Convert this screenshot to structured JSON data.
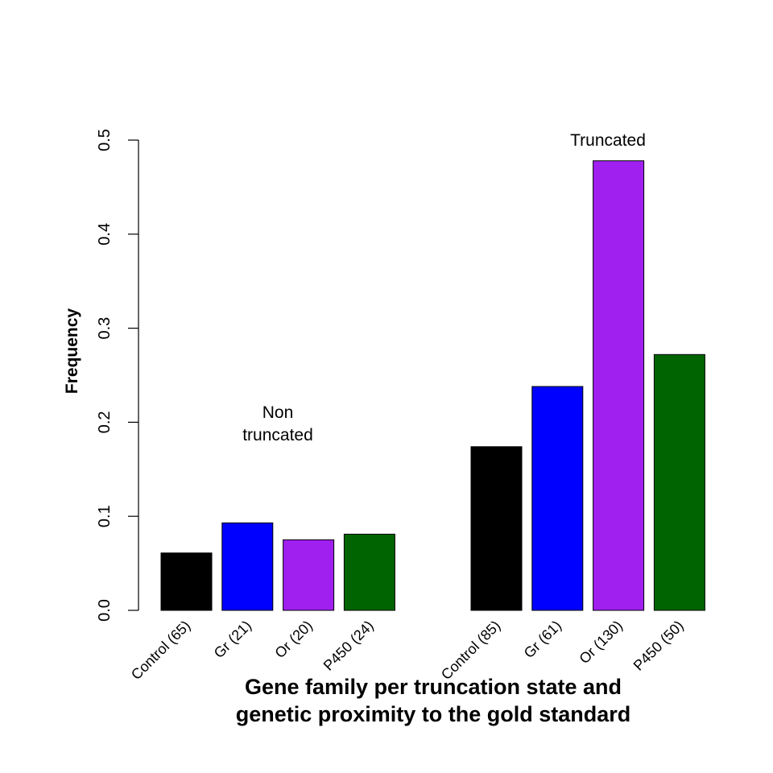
{
  "chart_data": {
    "type": "bar",
    "title": "",
    "xlabel_lines": [
      "Gene family per truncation state and",
      "genetic proximity to the gold standard"
    ],
    "ylabel": "Frequency",
    "ylim": [
      0,
      0.5
    ],
    "yticks": [
      "0.0",
      "0.1",
      "0.2",
      "0.3",
      "0.4",
      "0.5"
    ],
    "grid": false,
    "groups": [
      {
        "annotation_lines": [
          "Non",
          "truncated"
        ],
        "categories": [
          "Control (65)",
          "Gr (21)",
          "Or (20)",
          "P450 (24)"
        ],
        "values": [
          0.061,
          0.093,
          0.075,
          0.081
        ]
      },
      {
        "annotation_lines": [
          "Truncated"
        ],
        "categories": [
          "Control (85)",
          "Gr (61)",
          "Or (130)",
          "P450 (50)"
        ],
        "values": [
          0.174,
          0.238,
          0.478,
          0.272
        ]
      }
    ],
    "colors": [
      "#000000",
      "#0000ff",
      "#a020f0",
      "#006400"
    ]
  }
}
